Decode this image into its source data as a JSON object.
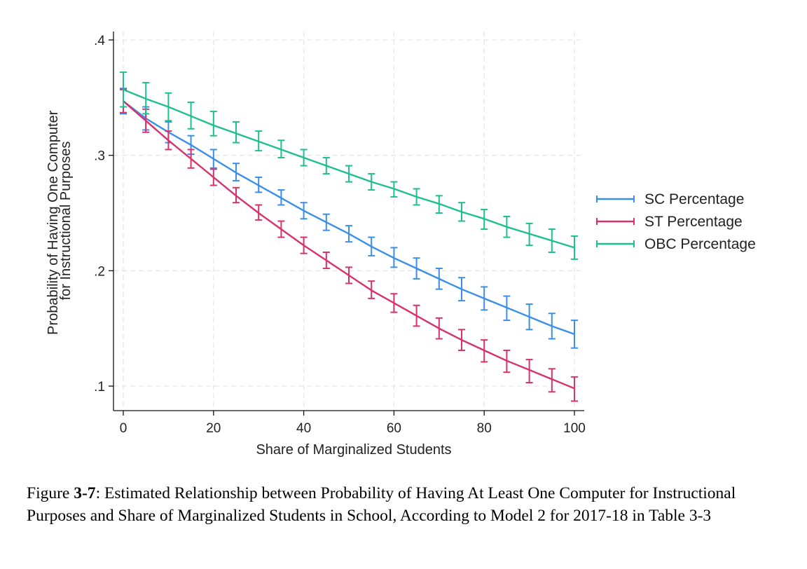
{
  "chart_data": {
    "type": "line",
    "xlabel": "Share of Marginalized Students",
    "ylabel_lines": [
      "Probability of Having One Computer",
      "for Instructional Purposes"
    ],
    "xlim": [
      0,
      100
    ],
    "ylim": [
      0.08,
      0.41
    ],
    "xticks": [
      0,
      20,
      40,
      60,
      80,
      100
    ],
    "xtick_labels": [
      "0",
      "20",
      "40",
      "60",
      "80",
      "100"
    ],
    "yticks": [
      0.1,
      0.2,
      0.3,
      0.4
    ],
    "ytick_labels": [
      ".1",
      ".2",
      ".3",
      ".4"
    ],
    "grid": true,
    "legend_position": "right",
    "x": [
      0,
      5,
      10,
      15,
      20,
      25,
      30,
      35,
      40,
      45,
      50,
      55,
      60,
      65,
      70,
      75,
      80,
      85,
      90,
      95,
      100
    ],
    "series": [
      {
        "name": "SC Percentage",
        "color": "#3a8fe8",
        "values": [
          0.347,
          0.332,
          0.32,
          0.309,
          0.297,
          0.285,
          0.274,
          0.263,
          0.252,
          0.242,
          0.232,
          0.221,
          0.211,
          0.202,
          0.193,
          0.184,
          0.176,
          0.168,
          0.16,
          0.152,
          0.145
        ],
        "lower": [
          0.336,
          0.322,
          0.311,
          0.301,
          0.289,
          0.278,
          0.268,
          0.257,
          0.245,
          0.235,
          0.225,
          0.213,
          0.203,
          0.193,
          0.184,
          0.174,
          0.166,
          0.157,
          0.149,
          0.141,
          0.133
        ],
        "upper": [
          0.358,
          0.342,
          0.329,
          0.317,
          0.305,
          0.293,
          0.281,
          0.27,
          0.259,
          0.249,
          0.239,
          0.229,
          0.22,
          0.211,
          0.202,
          0.194,
          0.186,
          0.178,
          0.171,
          0.163,
          0.157
        ]
      },
      {
        "name": "ST Percentage",
        "color": "#d6336c",
        "values": [
          0.347,
          0.33,
          0.313,
          0.297,
          0.281,
          0.265,
          0.25,
          0.236,
          0.222,
          0.209,
          0.196,
          0.183,
          0.172,
          0.161,
          0.15,
          0.14,
          0.131,
          0.122,
          0.114,
          0.106,
          0.098
        ],
        "lower": [
          0.337,
          0.32,
          0.305,
          0.289,
          0.274,
          0.259,
          0.244,
          0.229,
          0.215,
          0.202,
          0.189,
          0.176,
          0.164,
          0.152,
          0.141,
          0.131,
          0.121,
          0.112,
          0.103,
          0.095,
          0.087
        ],
        "upper": [
          0.357,
          0.34,
          0.321,
          0.305,
          0.288,
          0.272,
          0.257,
          0.243,
          0.229,
          0.216,
          0.203,
          0.191,
          0.18,
          0.17,
          0.159,
          0.149,
          0.14,
          0.131,
          0.123,
          0.115,
          0.108
        ]
      },
      {
        "name": "OBC Percentage",
        "color": "#1fbf8f",
        "values": [
          0.357,
          0.349,
          0.342,
          0.334,
          0.326,
          0.319,
          0.312,
          0.305,
          0.298,
          0.291,
          0.284,
          0.277,
          0.271,
          0.264,
          0.258,
          0.251,
          0.245,
          0.238,
          0.232,
          0.226,
          0.22
        ],
        "lower": [
          0.342,
          0.336,
          0.33,
          0.323,
          0.317,
          0.311,
          0.304,
          0.298,
          0.291,
          0.284,
          0.277,
          0.27,
          0.264,
          0.257,
          0.25,
          0.243,
          0.236,
          0.229,
          0.222,
          0.216,
          0.21
        ],
        "upper": [
          0.372,
          0.363,
          0.354,
          0.346,
          0.338,
          0.329,
          0.321,
          0.313,
          0.305,
          0.298,
          0.291,
          0.284,
          0.277,
          0.271,
          0.265,
          0.259,
          0.253,
          0.247,
          0.241,
          0.236,
          0.23
        ]
      }
    ]
  },
  "caption": {
    "prefix": "Figure ",
    "number": "3-7",
    "text": ": Estimated Relationship between Probability of Having At Least One Computer for Instructional Purposes and Share of Marginalized Students in School, According to Model 2 for 2017-18 in Table 3-3"
  }
}
